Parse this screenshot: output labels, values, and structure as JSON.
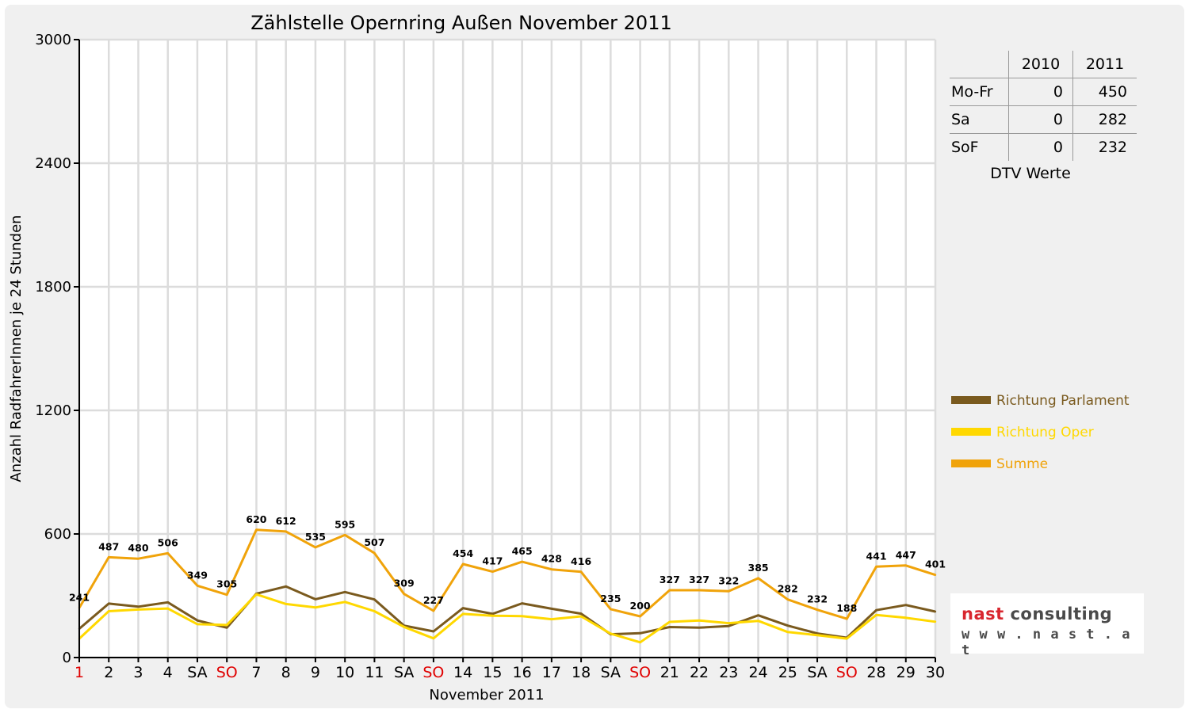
{
  "chart_data": {
    "type": "line",
    "title": "Zählstelle Opernring Außen November 2011",
    "xlabel": "November 2011",
    "ylabel": "Anzahl RadfahrerInnen je 24 Stunden",
    "ylim": [
      0,
      3000
    ],
    "yticks": [
      0,
      600,
      1200,
      1800,
      2400,
      3000
    ],
    "grid": true,
    "legend_position": "right",
    "categories": [
      "1",
      "2",
      "3",
      "4",
      "SA",
      "SO",
      "7",
      "8",
      "9",
      "10",
      "11",
      "SA",
      "SO",
      "14",
      "15",
      "16",
      "17",
      "18",
      "SA",
      "SO",
      "21",
      "22",
      "23",
      "24",
      "25",
      "SA",
      "SO",
      "28",
      "29",
      "30"
    ],
    "category_colors": [
      "#e00000",
      "#000000",
      "#000000",
      "#000000",
      "#000000",
      "#e00000",
      "#000000",
      "#000000",
      "#000000",
      "#000000",
      "#000000",
      "#000000",
      "#e00000",
      "#000000",
      "#000000",
      "#000000",
      "#000000",
      "#000000",
      "#000000",
      "#e00000",
      "#000000",
      "#000000",
      "#000000",
      "#000000",
      "#000000",
      "#000000",
      "#e00000",
      "#000000",
      "#000000",
      "#000000"
    ],
    "series": [
      {
        "name": "Richtung Parlament",
        "color": "#7a5a1e",
        "values": [
          140,
          262,
          247,
          268,
          180,
          145,
          310,
          345,
          283,
          318,
          282,
          155,
          127,
          240,
          212,
          263,
          237,
          213,
          113,
          118,
          148,
          145,
          153,
          205,
          155,
          117,
          96,
          230,
          255,
          223
        ]
      },
      {
        "name": "Richtung Oper",
        "color": "#ffd800",
        "values": [
          92,
          225,
          233,
          238,
          162,
          158,
          307,
          260,
          243,
          270,
          225,
          149,
          93,
          212,
          203,
          201,
          186,
          200,
          116,
          74,
          173,
          180,
          167,
          178,
          124,
          109,
          92,
          207,
          193,
          174
        ]
      },
      {
        "name": "Summe",
        "color": "#f0a30a",
        "values": [
          241,
          487,
          480,
          506,
          349,
          305,
          620,
          612,
          535,
          595,
          507,
          309,
          227,
          454,
          417,
          465,
          428,
          416,
          235,
          200,
          327,
          327,
          322,
          385,
          282,
          232,
          188,
          441,
          447,
          401
        ],
        "data_labels": [
          241,
          487,
          480,
          506,
          349,
          305,
          620,
          612,
          535,
          595,
          507,
          309,
          227,
          454,
          417,
          465,
          428,
          416,
          235,
          200,
          327,
          327,
          322,
          385,
          282,
          232,
          188,
          441,
          447,
          401
        ]
      }
    ]
  },
  "dtv_table": {
    "headers": [
      "",
      "2010",
      "2011"
    ],
    "rows": [
      {
        "label": "Mo-Fr",
        "v2010": "0",
        "v2011": "450"
      },
      {
        "label": "Sa",
        "v2010": "0",
        "v2011": "282"
      },
      {
        "label": "SoF",
        "v2010": "0",
        "v2011": "232"
      }
    ],
    "caption": "DTV Werte"
  },
  "logo": {
    "word1": "nast",
    "word2": "consulting",
    "url": "w w w . n a s t . a t",
    "word1_color": "#d8262e",
    "word2_color": "#4a4a4a"
  }
}
